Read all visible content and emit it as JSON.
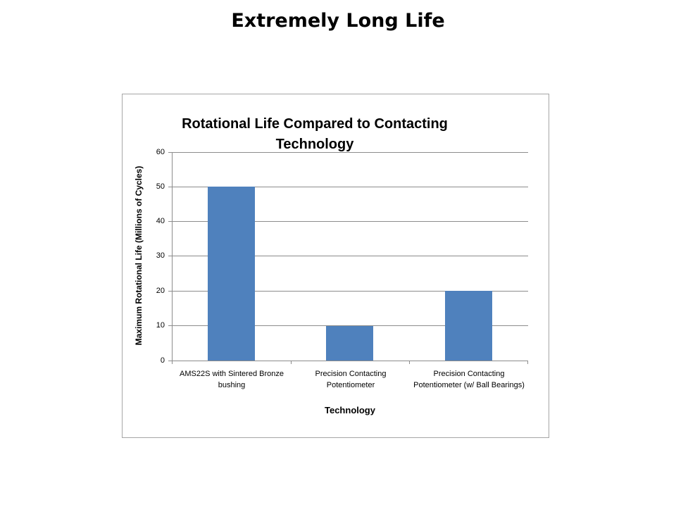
{
  "slide": {
    "title": "Extremely Long Life"
  },
  "chart_data": {
    "type": "bar",
    "title": "Rotational Life Compared to Contacting Technology",
    "title_lines": [
      "Rotational Life Compared to Contacting",
      "Technology"
    ],
    "categories": [
      "AMS22S with Sintered Bronze bushing",
      "Precision Contacting Potentiometer",
      "Precision Contacting Potentiometer (w/ Ball Bearings)"
    ],
    "values": [
      50,
      10,
      20
    ],
    "xlabel": "Technology",
    "ylabel": "Maximum Rotational Life (Millions of Cycles)",
    "ylim": [
      0,
      60
    ],
    "yticks": [
      "0",
      "10",
      "20",
      "30",
      "40",
      "50",
      "60"
    ],
    "grid": true,
    "legend": "none",
    "bar_color": "#4f81bd"
  }
}
